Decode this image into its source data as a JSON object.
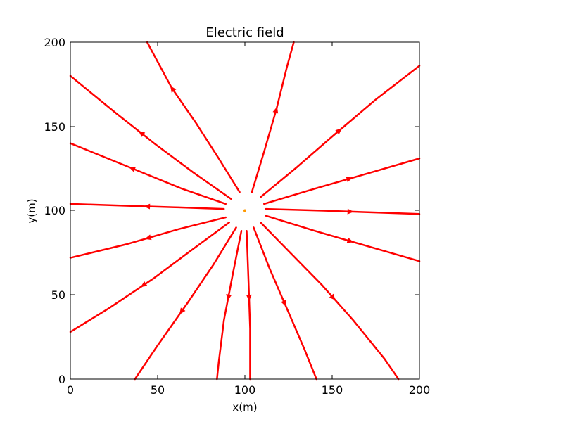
{
  "chart_data": {
    "type": "streamplot",
    "title": "Electric field",
    "xlabel": "x(m)",
    "ylabel": "y(m)",
    "xlim": [
      0,
      200
    ],
    "ylim": [
      0,
      200
    ],
    "x_ticks": [
      "0",
      "50",
      "100",
      "150",
      "200"
    ],
    "y_ticks": [
      "0",
      "50",
      "100",
      "150",
      "200"
    ],
    "grid": false,
    "line_color": "#ff0000",
    "charge_position": [
      100,
      100
    ],
    "streamlines": [
      {
        "points": [
          [
            97,
            111
          ],
          [
            85,
            131
          ],
          [
            72,
            152
          ],
          [
            58,
            173
          ],
          [
            44,
            200
          ]
        ],
        "arrow": 0.7
      },
      {
        "points": [
          [
            92,
            107
          ],
          [
            70,
            123
          ],
          [
            48,
            140
          ],
          [
            26,
            158
          ],
          [
            0,
            180
          ]
        ],
        "arrow": 0.55
      },
      {
        "points": [
          [
            89,
            104
          ],
          [
            64,
            113
          ],
          [
            38,
            124
          ],
          [
            0,
            140
          ]
        ],
        "arrow": 0.6
      },
      {
        "points": [
          [
            88,
            101
          ],
          [
            60,
            102
          ],
          [
            30,
            103
          ],
          [
            0,
            104
          ]
        ],
        "arrow": 0.5
      },
      {
        "points": [
          [
            89,
            96
          ],
          [
            62,
            89
          ],
          [
            32,
            80
          ],
          [
            0,
            72
          ]
        ],
        "arrow": 0.5
      },
      {
        "points": [
          [
            91,
            93
          ],
          [
            70,
            77
          ],
          [
            48,
            60
          ],
          [
            22,
            42
          ],
          [
            0,
            28
          ]
        ],
        "arrow": 0.55
      },
      {
        "points": [
          [
            95,
            90
          ],
          [
            82,
            68
          ],
          [
            67,
            45
          ],
          [
            50,
            20
          ],
          [
            37,
            0
          ]
        ],
        "arrow": 0.55
      },
      {
        "points": [
          [
            98,
            88
          ],
          [
            93,
            62
          ],
          [
            88,
            35
          ],
          [
            85,
            10
          ],
          [
            84,
            0
          ]
        ],
        "arrow": 0.45
      },
      {
        "points": [
          [
            101,
            88
          ],
          [
            102,
            60
          ],
          [
            103,
            30
          ],
          [
            103,
            0
          ]
        ],
        "arrow": 0.45
      },
      {
        "points": [
          [
            105,
            90
          ],
          [
            114,
            66
          ],
          [
            124,
            42
          ],
          [
            134,
            18
          ],
          [
            141,
            0
          ]
        ],
        "arrow": 0.5
      },
      {
        "points": [
          [
            109,
            93
          ],
          [
            126,
            75
          ],
          [
            144,
            56
          ],
          [
            162,
            35
          ],
          [
            180,
            12
          ],
          [
            188,
            0
          ]
        ],
        "arrow": 0.5
      },
      {
        "points": [
          [
            112,
            97
          ],
          [
            140,
            88
          ],
          [
            170,
            79
          ],
          [
            200,
            70
          ]
        ],
        "arrow": 0.55
      },
      {
        "points": [
          [
            112,
            101
          ],
          [
            145,
            100
          ],
          [
            172,
            99
          ],
          [
            200,
            98
          ]
        ],
        "arrow": 0.55
      },
      {
        "points": [
          [
            111,
            104
          ],
          [
            140,
            113
          ],
          [
            170,
            122
          ],
          [
            200,
            131
          ]
        ],
        "arrow": 0.55
      },
      {
        "points": [
          [
            109,
            108
          ],
          [
            130,
            126
          ],
          [
            150,
            144
          ],
          [
            175,
            166
          ],
          [
            200,
            186
          ]
        ],
        "arrow": 0.5
      },
      {
        "points": [
          [
            104,
            111
          ],
          [
            111,
            135
          ],
          [
            118,
            160
          ],
          [
            124,
            185
          ],
          [
            128,
            200
          ]
        ],
        "arrow": 0.55
      }
    ]
  }
}
